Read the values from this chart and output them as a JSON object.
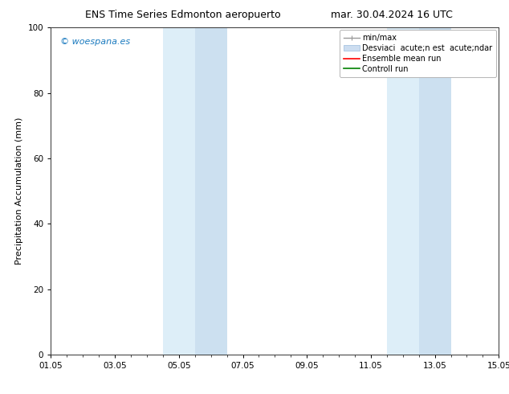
{
  "title_left": "ENS Time Series Edmonton aeropuerto",
  "title_right": "mar. 30.04.2024 16 UTC",
  "ylabel": "Precipitation Accumulation (mm)",
  "xlim_start": 0,
  "xlim_end": 14,
  "ylim": [
    0,
    100
  ],
  "yticks": [
    0,
    20,
    40,
    60,
    80,
    100
  ],
  "xtick_labels": [
    "01.05",
    "03.05",
    "05.05",
    "07.05",
    "09.05",
    "11.05",
    "13.05",
    "15.05"
  ],
  "xtick_positions": [
    0,
    2,
    4,
    6,
    8,
    10,
    12,
    14
  ],
  "shaded_regions": [
    {
      "x_start": 3.5,
      "x_end": 4.5,
      "color": "#ddeef8"
    },
    {
      "x_start": 4.5,
      "x_end": 5.5,
      "color": "#cce0f0"
    },
    {
      "x_start": 10.5,
      "x_end": 11.5,
      "color": "#ddeef8"
    },
    {
      "x_start": 11.5,
      "x_end": 12.5,
      "color": "#cce0f0"
    }
  ],
  "watermark_text": "© woespana.es",
  "watermark_color": "#1a7abf",
  "legend_label_minmax": "min/max",
  "legend_label_std": "Desviaci  acute;n est  acute;ndar",
  "legend_label_ens": "Ensemble mean run",
  "legend_label_ctrl": "Controll run",
  "legend_color_minmax": "#999999",
  "legend_color_std": "#ccddf0",
  "legend_color_ens": "#ff0000",
  "legend_color_ctrl": "#008000",
  "bg_color": "#ffffff",
  "plot_bg_color": "#f8faff",
  "title_fontsize": 9,
  "axis_label_fontsize": 8,
  "tick_fontsize": 7.5,
  "watermark_fontsize": 8,
  "legend_fontsize": 7
}
